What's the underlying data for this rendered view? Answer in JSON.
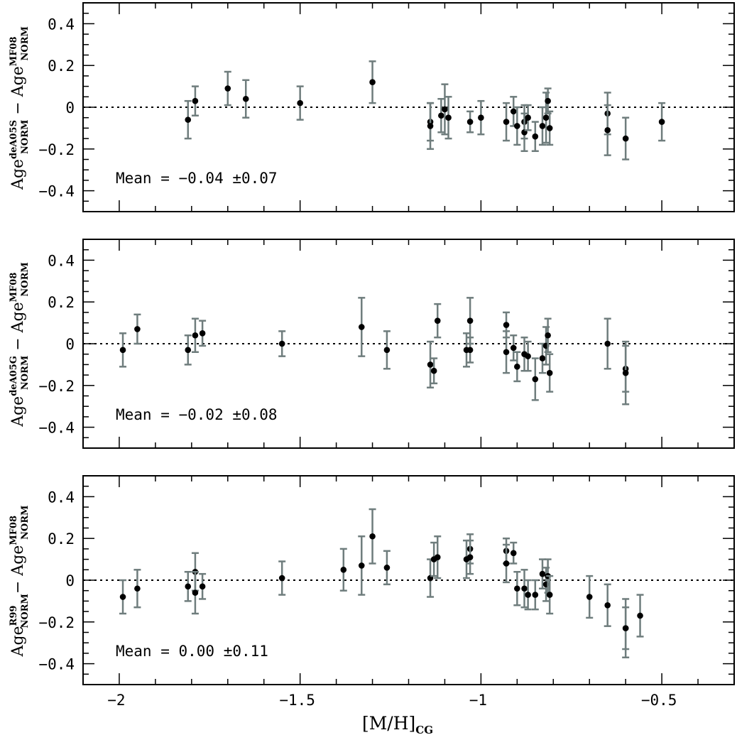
{
  "chart_data": [
    {
      "type": "scatter",
      "ylabel": {
        "base": "Age",
        "top_sup": "deA05S",
        "top_sub": "NORM",
        "bottom_sup": "MF08",
        "bottom_sub": "NORM",
        "separator": " − "
      },
      "mean_label": "Mean = −0.04 ±0.07",
      "xlim": [
        -2.1,
        -0.3
      ],
      "ylim": [
        -0.5,
        0.5
      ],
      "reference_line": 0,
      "points": [
        {
          "x": -1.81,
          "y": -0.06,
          "err": 0.09
        },
        {
          "x": -1.79,
          "y": 0.03,
          "err": 0.07
        },
        {
          "x": -1.7,
          "y": 0.09,
          "err": 0.08
        },
        {
          "x": -1.65,
          "y": 0.04,
          "err": 0.09
        },
        {
          "x": -1.5,
          "y": 0.02,
          "err": 0.08
        },
        {
          "x": -1.3,
          "y": 0.12,
          "err": 0.1
        },
        {
          "x": -1.14,
          "y": -0.07,
          "err": 0.09
        },
        {
          "x": -1.14,
          "y": -0.09,
          "err": 0.11
        },
        {
          "x": -1.11,
          "y": -0.04,
          "err": 0.08
        },
        {
          "x": -1.1,
          "y": -0.01,
          "err": 0.12
        },
        {
          "x": -1.09,
          "y": -0.05,
          "err": 0.1
        },
        {
          "x": -1.03,
          "y": -0.07,
          "err": 0.05
        },
        {
          "x": -1.0,
          "y": -0.05,
          "err": 0.08
        },
        {
          "x": -0.93,
          "y": -0.07,
          "err": 0.09
        },
        {
          "x": -0.91,
          "y": -0.02,
          "err": 0.07
        },
        {
          "x": -0.9,
          "y": -0.09,
          "err": 0.09
        },
        {
          "x": -0.88,
          "y": -0.07,
          "err": 0.08
        },
        {
          "x": -0.88,
          "y": -0.12,
          "err": 0.09
        },
        {
          "x": -0.87,
          "y": -0.05,
          "err": 0.06
        },
        {
          "x": -0.85,
          "y": -0.14,
          "err": 0.07
        },
        {
          "x": -0.83,
          "y": -0.09,
          "err": 0.09
        },
        {
          "x": -0.82,
          "y": -0.05,
          "err": 0.12
        },
        {
          "x": -0.815,
          "y": 0.03,
          "err": 0.06
        },
        {
          "x": -0.81,
          "y": -0.1,
          "err": 0.08
        },
        {
          "x": -0.65,
          "y": -0.03,
          "err": 0.1
        },
        {
          "x": -0.65,
          "y": -0.11,
          "err": 0.12
        },
        {
          "x": -0.6,
          "y": -0.15,
          "err": 0.1
        },
        {
          "x": -0.5,
          "y": -0.07,
          "err": 0.09
        }
      ]
    },
    {
      "type": "scatter",
      "ylabel": {
        "base": "Age",
        "top_sup": "deA05G",
        "top_sub": "NORM",
        "bottom_sup": "MF08",
        "bottom_sub": "NORM",
        "separator": " − "
      },
      "mean_label": "Mean = −0.02 ±0.08",
      "xlim": [
        -2.1,
        -0.3
      ],
      "ylim": [
        -0.5,
        0.5
      ],
      "reference_line": 0,
      "points": [
        {
          "x": -1.99,
          "y": -0.03,
          "err": 0.08
        },
        {
          "x": -1.95,
          "y": 0.07,
          "err": 0.07
        },
        {
          "x": -1.81,
          "y": -0.03,
          "err": 0.07
        },
        {
          "x": -1.79,
          "y": 0.04,
          "err": 0.08
        },
        {
          "x": -1.77,
          "y": 0.05,
          "err": 0.06
        },
        {
          "x": -1.55,
          "y": 0.0,
          "err": 0.06
        },
        {
          "x": -1.33,
          "y": 0.08,
          "err": 0.14
        },
        {
          "x": -1.26,
          "y": -0.03,
          "err": 0.09
        },
        {
          "x": -1.14,
          "y": -0.1,
          "err": 0.11
        },
        {
          "x": -1.13,
          "y": -0.13,
          "err": 0.06
        },
        {
          "x": -1.12,
          "y": 0.11,
          "err": 0.08
        },
        {
          "x": -1.04,
          "y": -0.03,
          "err": 0.08
        },
        {
          "x": -1.03,
          "y": 0.11,
          "err": 0.11
        },
        {
          "x": -1.03,
          "y": -0.03,
          "err": 0.06
        },
        {
          "x": -0.93,
          "y": 0.09,
          "err": 0.06
        },
        {
          "x": -0.93,
          "y": -0.04,
          "err": 0.1
        },
        {
          "x": -0.91,
          "y": -0.02,
          "err": 0.06
        },
        {
          "x": -0.9,
          "y": -0.11,
          "err": 0.07
        },
        {
          "x": -0.88,
          "y": -0.05,
          "err": 0.08
        },
        {
          "x": -0.87,
          "y": -0.06,
          "err": 0.07
        },
        {
          "x": -0.85,
          "y": -0.17,
          "err": 0.1
        },
        {
          "x": -0.83,
          "y": -0.07,
          "err": 0.07
        },
        {
          "x": -0.82,
          "y": -0.01,
          "err": 0.09
        },
        {
          "x": -0.815,
          "y": 0.04,
          "err": 0.08
        },
        {
          "x": -0.81,
          "y": -0.14,
          "err": 0.09
        },
        {
          "x": -0.65,
          "y": 0.0,
          "err": 0.12
        },
        {
          "x": -0.6,
          "y": -0.12,
          "err": 0.11
        },
        {
          "x": -0.6,
          "y": -0.14,
          "err": 0.15
        }
      ]
    },
    {
      "type": "scatter",
      "ylabel": {
        "base": "Age",
        "top_sup": "R99",
        "top_sub": "NORM",
        "bottom_sup": "MF08",
        "bottom_sub": "NORM",
        "separator": "− "
      },
      "mean_label": "Mean = 0.00 ±0.11",
      "xlabel": {
        "base": "[M/H]",
        "sub": "CG"
      },
      "xticks": [
        -2,
        -1.5,
        -1,
        -0.5
      ],
      "xtick_labels": [
        "−2",
        "−1.5",
        "−1",
        "−0.5"
      ],
      "xlim": [
        -2.1,
        -0.3
      ],
      "ylim": [
        -0.5,
        0.5
      ],
      "reference_line": 0,
      "points": [
        {
          "x": -1.99,
          "y": -0.08,
          "err": 0.08
        },
        {
          "x": -1.95,
          "y": -0.04,
          "err": 0.09
        },
        {
          "x": -1.81,
          "y": -0.03,
          "err": 0.07
        },
        {
          "x": -1.79,
          "y": 0.04,
          "err": 0.09
        },
        {
          "x": -1.79,
          "y": -0.06,
          "err": 0.1
        },
        {
          "x": -1.77,
          "y": -0.03,
          "err": 0.06
        },
        {
          "x": -1.55,
          "y": 0.01,
          "err": 0.08
        },
        {
          "x": -1.38,
          "y": 0.05,
          "err": 0.1
        },
        {
          "x": -1.33,
          "y": 0.07,
          "err": 0.14
        },
        {
          "x": -1.3,
          "y": 0.21,
          "err": 0.13
        },
        {
          "x": -1.26,
          "y": 0.06,
          "err": 0.08
        },
        {
          "x": -1.14,
          "y": 0.01,
          "err": 0.09
        },
        {
          "x": -1.13,
          "y": 0.1,
          "err": 0.08
        },
        {
          "x": -1.12,
          "y": 0.11,
          "err": 0.1
        },
        {
          "x": -1.04,
          "y": 0.1,
          "err": 0.09
        },
        {
          "x": -1.03,
          "y": 0.15,
          "err": 0.07
        },
        {
          "x": -1.03,
          "y": 0.11,
          "err": 0.08
        },
        {
          "x": -0.93,
          "y": 0.14,
          "err": 0.06
        },
        {
          "x": -0.93,
          "y": 0.08,
          "err": 0.09
        },
        {
          "x": -0.91,
          "y": 0.13,
          "err": 0.05
        },
        {
          "x": -0.9,
          "y": -0.04,
          "err": 0.08
        },
        {
          "x": -0.88,
          "y": -0.04,
          "err": 0.09
        },
        {
          "x": -0.87,
          "y": -0.07,
          "err": 0.07
        },
        {
          "x": -0.85,
          "y": -0.07,
          "err": 0.07
        },
        {
          "x": -0.83,
          "y": 0.03,
          "err": 0.07
        },
        {
          "x": -0.82,
          "y": -0.02,
          "err": 0.08
        },
        {
          "x": -0.815,
          "y": 0.02,
          "err": 0.08
        },
        {
          "x": -0.81,
          "y": -0.07,
          "err": 0.09
        },
        {
          "x": -0.7,
          "y": -0.08,
          "err": 0.1
        },
        {
          "x": -0.65,
          "y": -0.12,
          "err": 0.1
        },
        {
          "x": -0.6,
          "y": -0.23,
          "err": 0.14
        },
        {
          "x": -0.6,
          "y": -0.23,
          "err": 0.1
        },
        {
          "x": -0.56,
          "y": -0.17,
          "err": 0.1
        }
      ]
    }
  ],
  "yticks": [
    0.4,
    0.2,
    0,
    -0.2,
    -0.4
  ],
  "ytick_labels": [
    "0.4",
    "0.2",
    "0",
    "−0.2",
    "−0.4"
  ],
  "colors": {
    "point": "#000000",
    "errorbar": "#6f7d7d",
    "axes": "#000000",
    "reference_line": "#000000"
  }
}
